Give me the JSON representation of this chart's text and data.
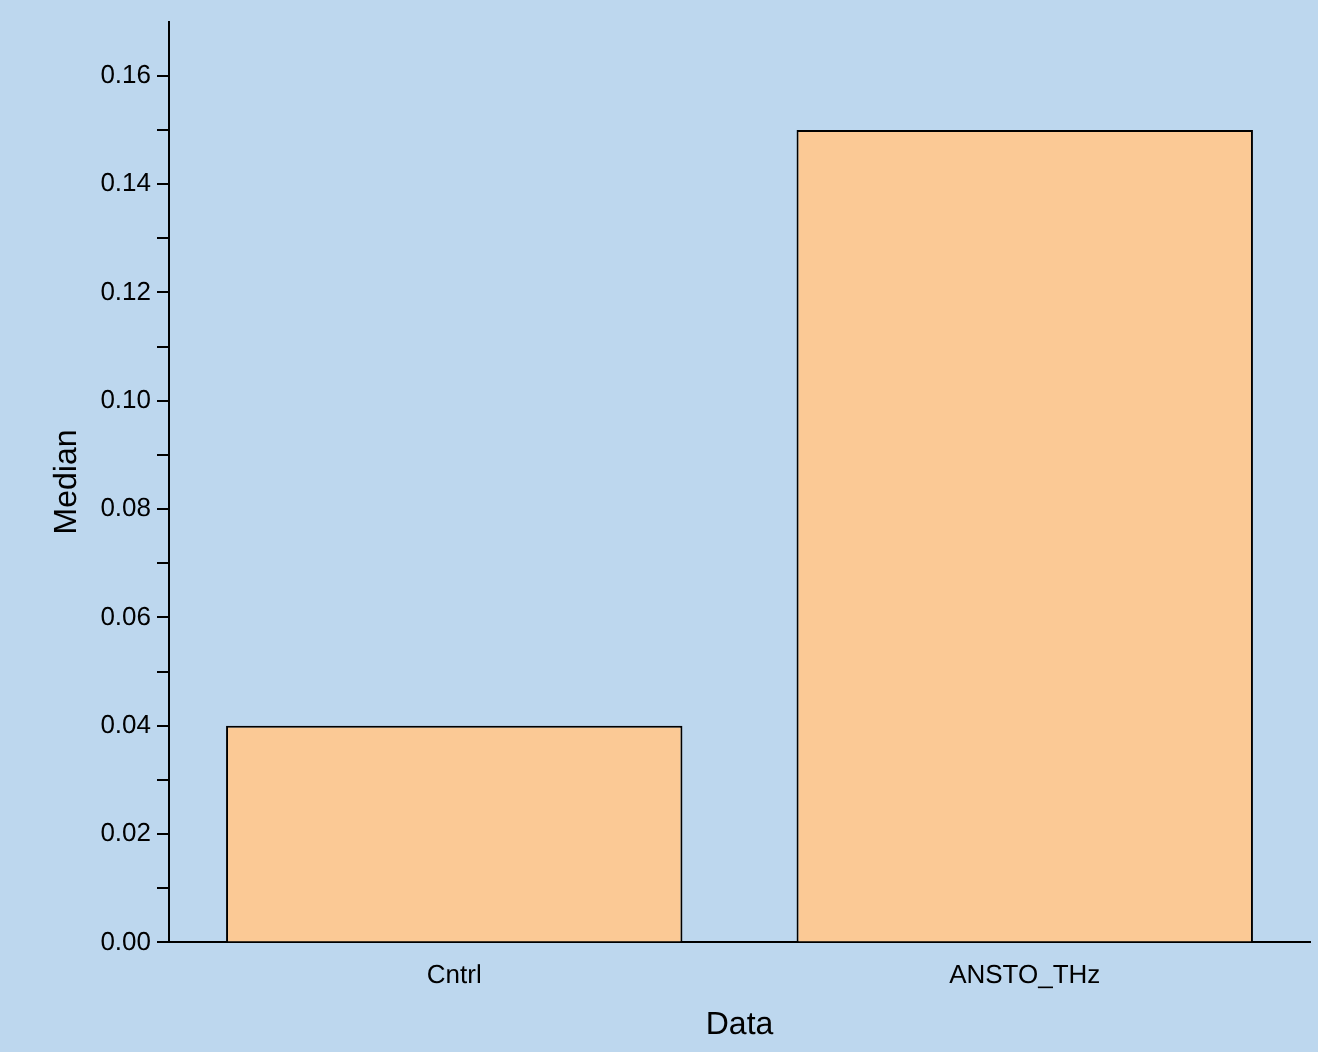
{
  "chart_data": {
    "type": "bar",
    "xlabel": "Data",
    "ylabel": "Median",
    "categories": [
      "Cntrl",
      "ANSTO_THz"
    ],
    "values": [
      0.04,
      0.15
    ],
    "color": "#fbc995",
    "ylim": [
      0,
      0.17
    ],
    "yticks": [
      {
        "value": 0,
        "label": "0.00"
      },
      {
        "value": 0.01,
        "label": null
      },
      {
        "value": 0.02,
        "label": "0.02"
      },
      {
        "value": 0.03,
        "label": null
      },
      {
        "value": 0.04,
        "label": "0.04"
      },
      {
        "value": 0.05,
        "label": null
      },
      {
        "value": 0.06,
        "label": "0.06"
      },
      {
        "value": 0.07,
        "label": null
      },
      {
        "value": 0.08,
        "label": "0.08"
      },
      {
        "value": 0.09,
        "label": null
      },
      {
        "value": 0.1,
        "label": "0.10"
      },
      {
        "value": 0.11,
        "label": null
      },
      {
        "value": 0.12,
        "label": "0.12"
      },
      {
        "value": 0.13,
        "label": null
      },
      {
        "value": 0.14,
        "label": "0.14"
      },
      {
        "value": 0.15,
        "label": null
      },
      {
        "value": 0.16,
        "label": "0.16"
      }
    ],
    "grid": false,
    "legend": false
  }
}
